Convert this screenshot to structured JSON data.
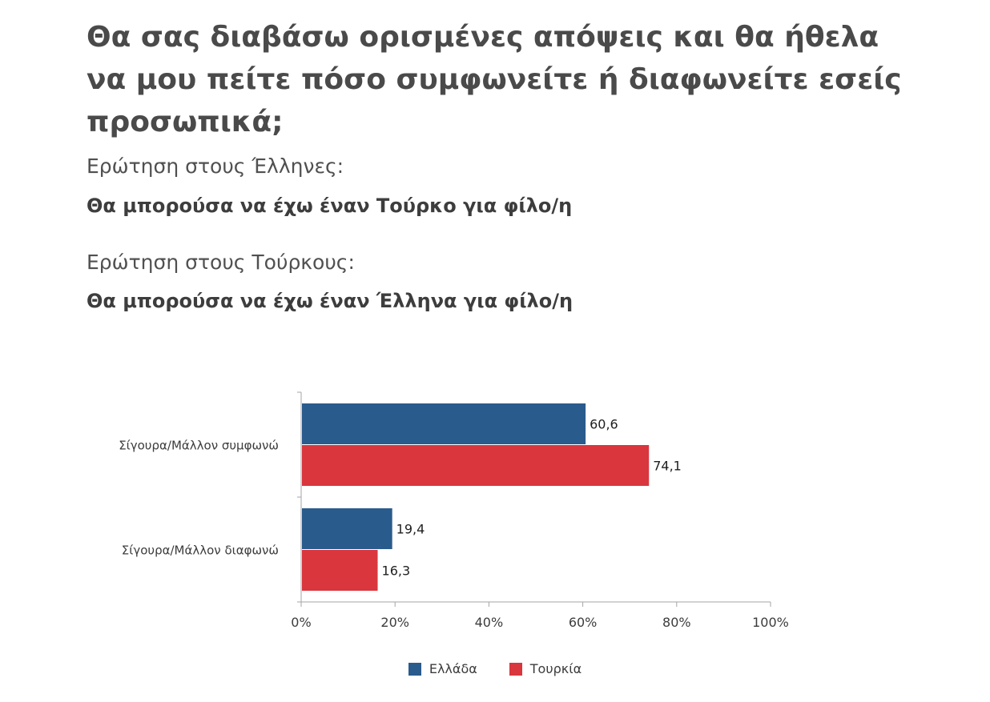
{
  "header": {
    "title": "Θα σας διαβάσω ορισμένες απόψεις και θα ήθελα να μου πείτε πόσο συμφωνείτε ή διαφωνείτε εσείς προσωπικά;",
    "q1_label": "Ερώτηση στους Έλληνες:",
    "q1_text": "Θα μπορούσα να έχω έναν Τούρκο για φίλο/η",
    "q2_label": "Ερώτηση στους Τούρκους:",
    "q2_text": "Θα μπορούσα να έχω έναν Έλληνα για φίλο/η"
  },
  "colors": {
    "greece": "#2a5b8d",
    "turkey": "#d9363e"
  },
  "chart_data": {
    "type": "bar",
    "orientation": "horizontal",
    "categories": [
      "Σίγουρα/Μάλλον συμφωνώ",
      "Σίγουρα/Μάλλον διαφωνώ"
    ],
    "series": [
      {
        "name": "Ελλάδα",
        "values": [
          60.6,
          19.4
        ],
        "labels": [
          "60,6",
          "19,4"
        ]
      },
      {
        "name": "Τουρκία",
        "values": [
          74.1,
          16.3
        ],
        "labels": [
          "74,1",
          "16,3"
        ]
      }
    ],
    "xlim": [
      0,
      100
    ],
    "xticks": [
      "0%",
      "20%",
      "40%",
      "60%",
      "80%",
      "100%"
    ],
    "legend_position": "bottom",
    "grid": false
  }
}
